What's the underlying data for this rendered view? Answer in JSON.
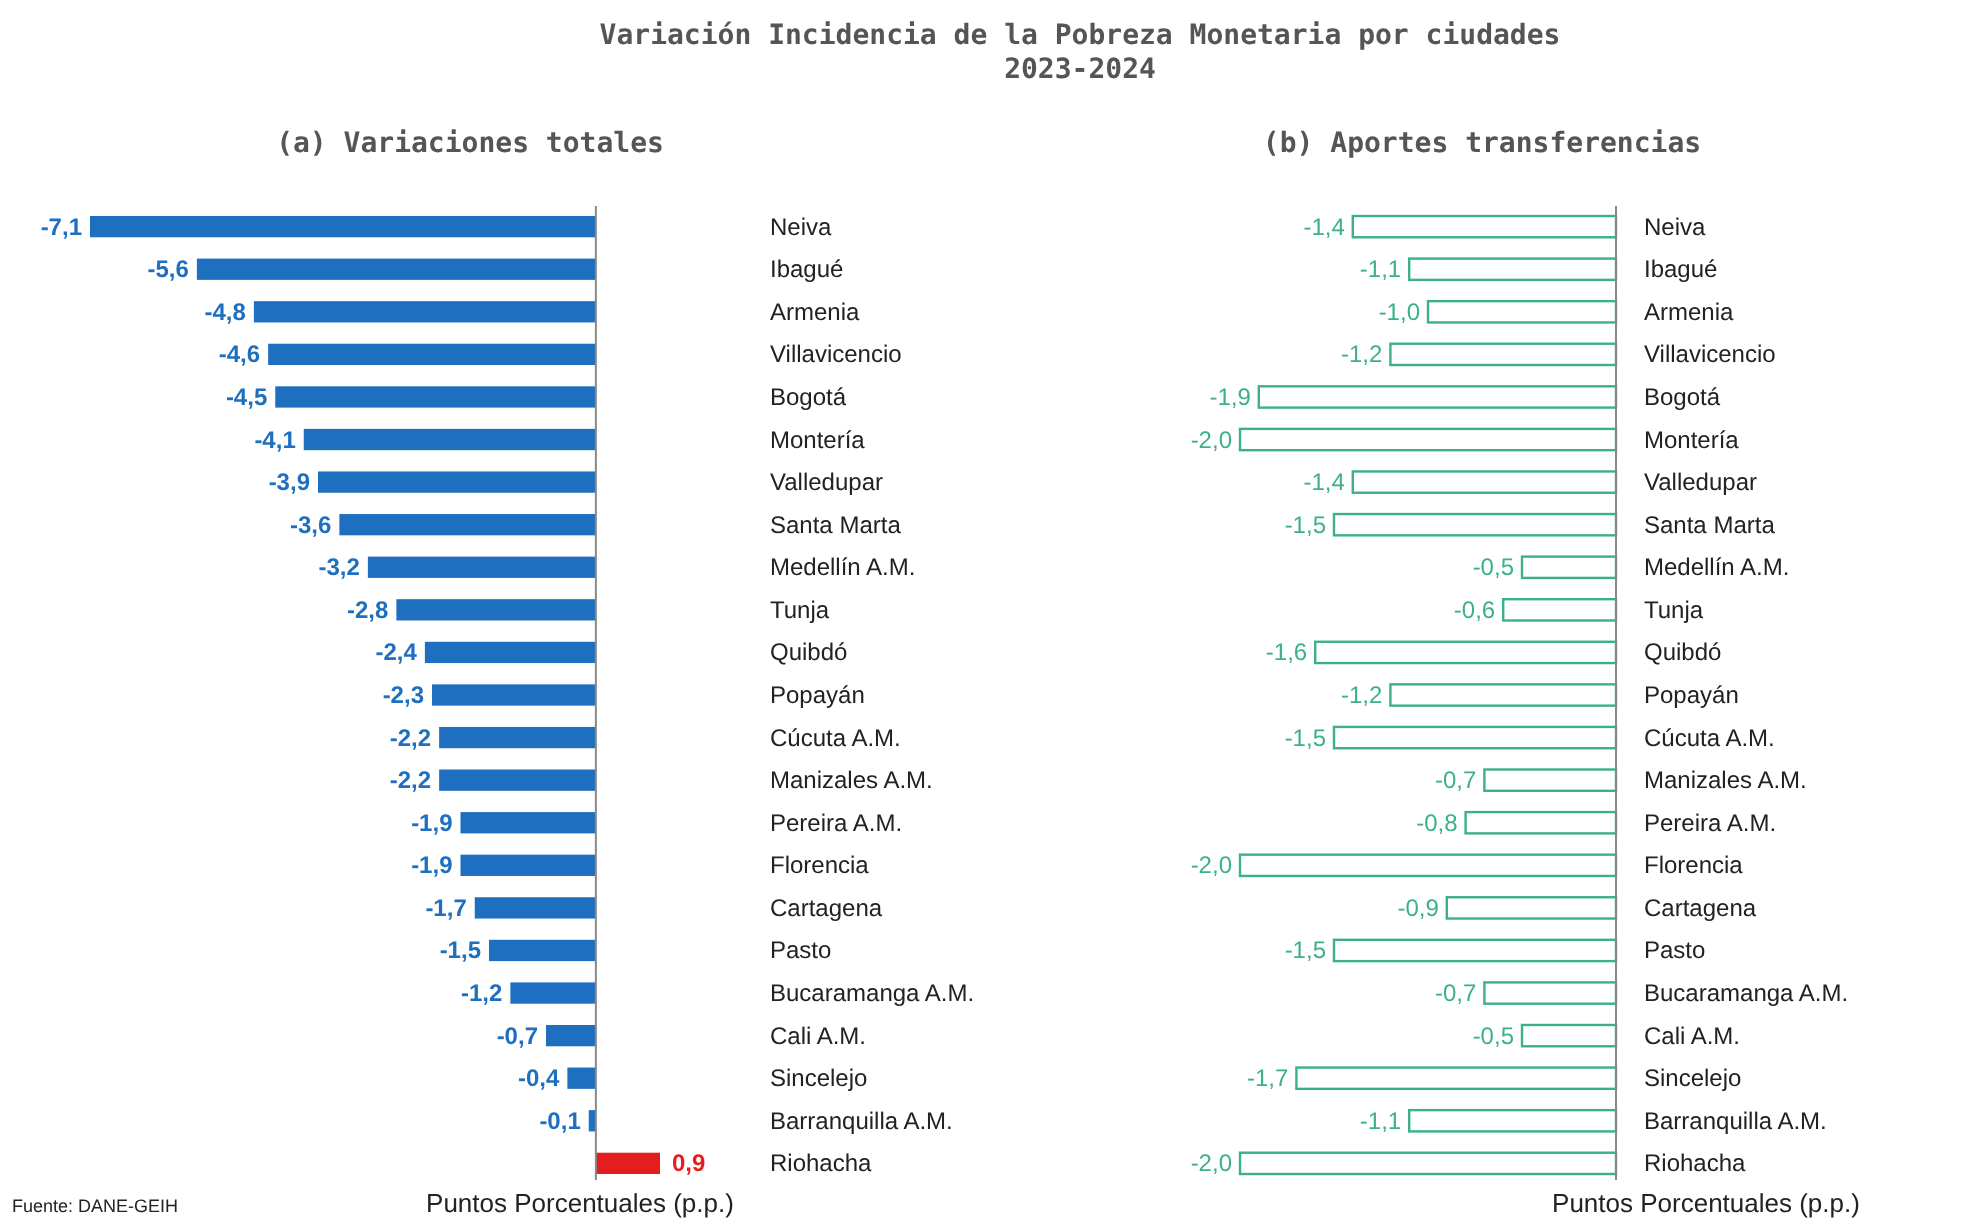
{
  "chart_data": [
    {
      "type": "bar",
      "orientation": "horizontal",
      "title": "Variación Incidencia de la Pobreza Monetaria por ciudades\n2023-2024",
      "subtitle": "(a)  Variaciones totales",
      "xlabel": "Puntos Porcentuales (p.p.)",
      "categories": [
        "Neiva",
        "Ibagué",
        "Armenia",
        "Villavicencio",
        "Bogotá",
        "Montería",
        "Valledupar",
        "Santa Marta",
        "Medellín A.M.",
        "Tunja",
        "Quibdó",
        "Popayán",
        "Cúcuta A.M.",
        "Manizales A.M.",
        "Pereira A.M.",
        "Florencia",
        "Cartagena",
        "Pasto",
        "Bucaramanga A.M.",
        "Cali A.M.",
        "Sincelejo",
        "Barranquilla A.M.",
        "Riohacha"
      ],
      "value_labels": [
        "-7,1",
        "-5,6",
        "-4,8",
        "-4,6",
        "-4,5",
        "-4,1",
        "-3,9",
        "-3,6",
        "-3,2",
        "-2,8",
        "-2,4",
        "-2,3",
        "-2,2",
        "-2,2",
        "-1,9",
        "-1,9",
        "-1,7",
        "-1,5",
        "-1,2",
        "-0,7",
        "-0,4",
        "-0,1",
        "0,9"
      ],
      "values": [
        -7.1,
        -5.6,
        -4.8,
        -4.6,
        -4.5,
        -4.1,
        -3.9,
        -3.6,
        -3.2,
        -2.8,
        -2.4,
        -2.3,
        -2.2,
        -2.2,
        -1.9,
        -1.9,
        -1.7,
        -1.5,
        -1.2,
        -0.7,
        -0.4,
        -0.1,
        0.9
      ],
      "colors": [
        "#1f6fc0",
        "#1f6fc0",
        "#1f6fc0",
        "#1f6fc0",
        "#1f6fc0",
        "#1f6fc0",
        "#1f6fc0",
        "#1f6fc0",
        "#1f6fc0",
        "#1f6fc0",
        "#1f6fc0",
        "#1f6fc0",
        "#1f6fc0",
        "#1f6fc0",
        "#1f6fc0",
        "#1f6fc0",
        "#1f6fc0",
        "#1f6fc0",
        "#1f6fc0",
        "#1f6fc0",
        "#1f6fc0",
        "#1f6fc0",
        "#e41e1e"
      ],
      "annotations": [
        "Fuente: DANE-GEIH"
      ]
    },
    {
      "type": "bar",
      "orientation": "horizontal",
      "subtitle": "(b)  Aportes transferencias",
      "xlabel": "Puntos Porcentuales (p.p.)",
      "categories": [
        "Neiva",
        "Ibagué",
        "Armenia",
        "Villavicencio",
        "Bogotá",
        "Montería",
        "Valledupar",
        "Santa Marta",
        "Medellín A.M.",
        "Tunja",
        "Quibdó",
        "Popayán",
        "Cúcuta A.M.",
        "Manizales A.M.",
        "Pereira A.M.",
        "Florencia",
        "Cartagena",
        "Pasto",
        "Bucaramanga A.M.",
        "Cali A.M.",
        "Sincelejo",
        "Barranquilla A.M.",
        "Riohacha"
      ],
      "value_labels": [
        "-1,4",
        "-1,1",
        "-1,0",
        "-1,2",
        "-1,9",
        "-2,0",
        "-1,4",
        "-1,5",
        "-0,5",
        "-0,6",
        "-1,6",
        "-1,2",
        "-1,5",
        "-0,7",
        "-0,8",
        "-2,0",
        "-0,9",
        "-1,5",
        "-0,7",
        "-0,5",
        "-1,7",
        "-1,1",
        "-2,0"
      ],
      "values": [
        -1.4,
        -1.1,
        -1.0,
        -1.2,
        -1.9,
        -2.0,
        -1.4,
        -1.5,
        -0.5,
        -0.6,
        -1.6,
        -1.2,
        -1.5,
        -0.7,
        -0.8,
        -2.0,
        -0.9,
        -1.5,
        -0.7,
        -0.5,
        -1.7,
        -1.1,
        -2.0
      ],
      "color": "#3cb08a"
    }
  ]
}
